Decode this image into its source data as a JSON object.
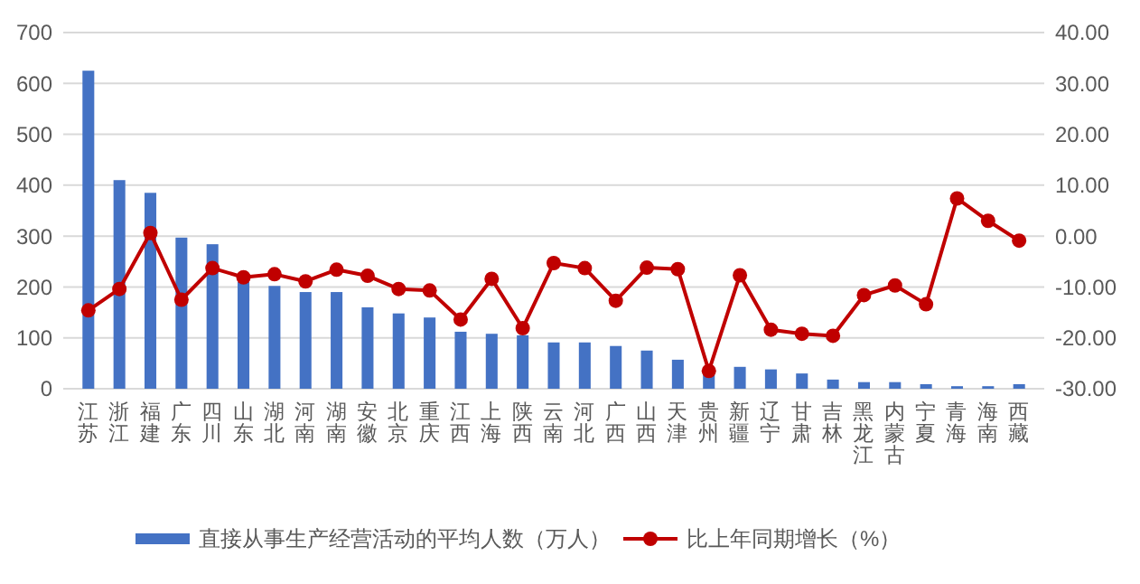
{
  "chart_data": {
    "type": "bar",
    "categories": [
      "江苏",
      "浙江",
      "福建",
      "广东",
      "四川",
      "山东",
      "湖北",
      "河南",
      "湖南",
      "安徽",
      "北京",
      "重庆",
      "江西",
      "上海",
      "陕西",
      "云南",
      "河北",
      "广西",
      "山西",
      "天津",
      "贵州",
      "新疆",
      "辽宁",
      "甘肃",
      "吉林",
      "黑龙江",
      "内蒙古",
      "宁夏",
      "青海",
      "海南",
      "西藏"
    ],
    "series": [
      {
        "name": "直接从事生产经营活动的平均人数（万人）",
        "color": "#4472c4",
        "values": [
          625,
          410,
          385,
          297,
          284,
          210,
          202,
          190,
          190,
          160,
          148,
          140,
          112,
          108,
          105,
          91,
          91,
          84,
          75,
          57,
          30,
          43,
          38,
          30,
          18,
          13,
          13,
          9,
          5,
          5,
          9
        ]
      },
      {
        "name": "比上年同期增长（%）",
        "type": "line",
        "axis": "y2",
        "color": "#c00000",
        "values": [
          -14.6,
          -10.4,
          0.6,
          -12.5,
          -6.3,
          -8.1,
          -7.5,
          -8.9,
          -6.6,
          -7.8,
          -10.4,
          -10.7,
          -16.4,
          -8.4,
          -18.1,
          -5.3,
          -6.3,
          -12.7,
          -6.2,
          -6.5,
          -26.5,
          -7.7,
          -18.4,
          -19.2,
          -19.6,
          -11.6,
          -9.7,
          -13.4,
          7.4,
          3.0,
          -0.9
        ]
      }
    ],
    "ylim": [
      0,
      700
    ],
    "yticks": [
      0,
      100,
      200,
      300,
      400,
      500,
      600,
      700
    ],
    "y2lim": [
      -30,
      40
    ],
    "y2ticks": [
      {
        "value": -30,
        "label": "-30.00"
      },
      {
        "value": -20,
        "label": "-20.00"
      },
      {
        "value": -10,
        "label": "-10.00"
      },
      {
        "value": 0,
        "label": "0.00"
      },
      {
        "value": 10,
        "label": "10.00"
      },
      {
        "value": 20,
        "label": "20.00"
      },
      {
        "value": 30,
        "label": "30.00"
      },
      {
        "value": 40,
        "label": "40.00"
      }
    ],
    "grid": "y",
    "legend": "bottom",
    "marker": "circle"
  }
}
